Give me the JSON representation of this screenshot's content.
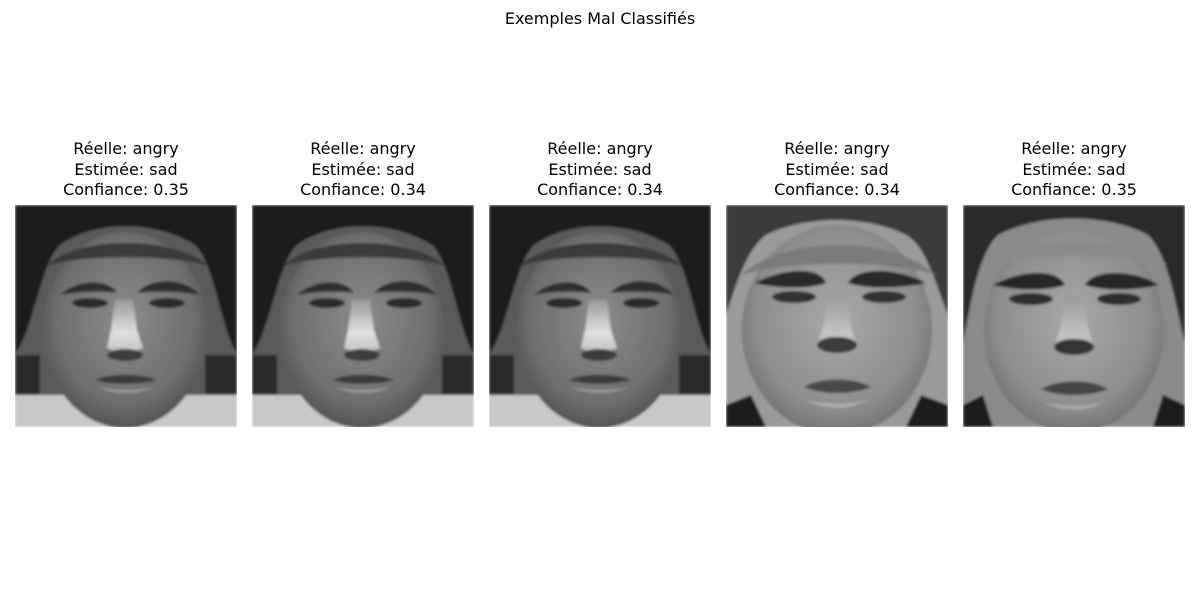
{
  "figure": {
    "title": "Exemples Mal Classifiés"
  },
  "samples": [
    {
      "true_line": "Réelle: angry",
      "pred_line": "Estimée: sad",
      "conf_line": "Confiance: 0.35",
      "subject": "subject-a"
    },
    {
      "true_line": "Réelle: angry",
      "pred_line": "Estimée: sad",
      "conf_line": "Confiance: 0.34",
      "subject": "subject-a"
    },
    {
      "true_line": "Réelle: angry",
      "pred_line": "Estimée: sad",
      "conf_line": "Confiance: 0.34",
      "subject": "subject-a"
    },
    {
      "true_line": "Réelle: angry",
      "pred_line": "Estimée: sad",
      "conf_line": "Confiance: 0.34",
      "subject": "subject-b"
    },
    {
      "true_line": "Réelle: angry",
      "pred_line": "Estimée: sad",
      "conf_line": "Confiance: 0.35",
      "subject": "subject-b"
    }
  ]
}
